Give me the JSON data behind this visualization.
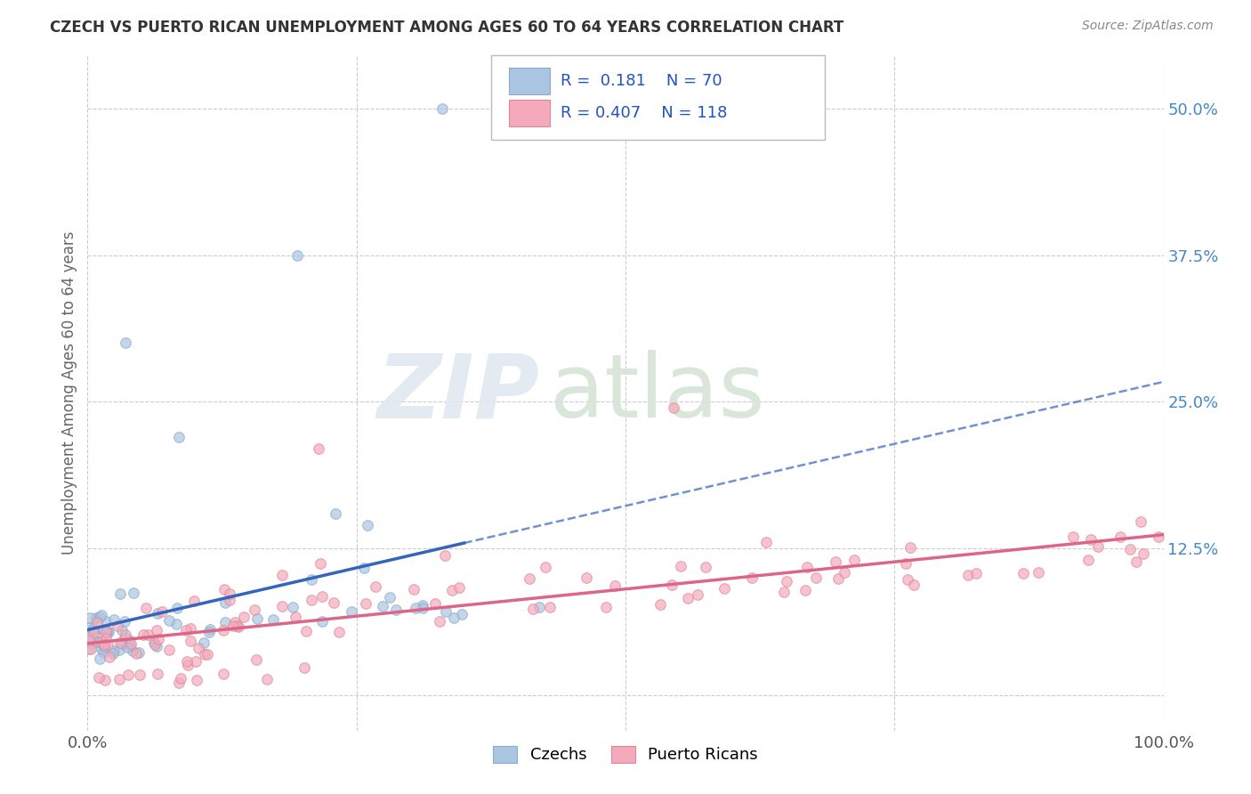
{
  "title": "CZECH VS PUERTO RICAN UNEMPLOYMENT AMONG AGES 60 TO 64 YEARS CORRELATION CHART",
  "source": "Source: ZipAtlas.com",
  "ylabel": "Unemployment Among Ages 60 to 64 years",
  "xlim": [
    0.0,
    1.0
  ],
  "ylim": [
    -0.03,
    0.545
  ],
  "ytick_positions": [
    0.0,
    0.125,
    0.25,
    0.375,
    0.5
  ],
  "ytick_labels": [
    "",
    "12.5%",
    "25.0%",
    "37.5%",
    "50.0%"
  ],
  "xtick_positions": [
    0.0,
    1.0
  ],
  "xtick_labels": [
    "0.0%",
    "100.0%"
  ],
  "czech_color": "#aac5e2",
  "czech_edge_color": "#88aacc",
  "puerto_rican_color": "#f4aabb",
  "puerto_rican_edge_color": "#dd8899",
  "czech_line_color": "#3366bb",
  "puerto_rican_line_color": "#dd6688",
  "czech_R": 0.181,
  "czech_N": 70,
  "puerto_rican_R": 0.407,
  "puerto_rican_N": 118,
  "background_color": "#ffffff",
  "grid_color": "#cccccc",
  "tick_color": "#4488cc",
  "title_color": "#333333",
  "source_color": "#888888",
  "ylabel_color": "#666666"
}
